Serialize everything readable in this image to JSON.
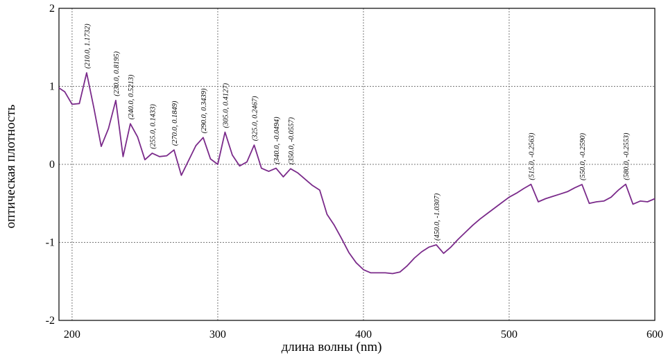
{
  "chart_data": {
    "type": "line",
    "title": "",
    "xlabel": "длина волны (nm)",
    "ylabel": "оптическая плотность",
    "xlim": [
      191,
      600
    ],
    "ylim": [
      -2,
      2
    ],
    "x_ticks": [
      200,
      300,
      400,
      500,
      600
    ],
    "y_ticks": [
      2,
      1,
      0,
      -1,
      -2
    ],
    "x_tick_labels": [
      "200",
      "300",
      "400",
      "500",
      "600"
    ],
    "y_tick_labels": [
      "2",
      "1",
      "0",
      "-1",
      "-2"
    ],
    "grid": "dashed",
    "series_color": "#7a2a8a",
    "series": [
      {
        "x": [
          191,
          195,
          200,
          205,
          210,
          215,
          220,
          225,
          230,
          235,
          240,
          245,
          250,
          255,
          260,
          265,
          270,
          275,
          280,
          285,
          290,
          295,
          300,
          305,
          310,
          315,
          320,
          325,
          330,
          335,
          340,
          345,
          350,
          355,
          360,
          365,
          370,
          375,
          380,
          385,
          390,
          395,
          400,
          405,
          410,
          415,
          420,
          425,
          430,
          435,
          440,
          445,
          450,
          455,
          460,
          465,
          470,
          475,
          480,
          485,
          490,
          495,
          500,
          505,
          510,
          515,
          520,
          525,
          530,
          535,
          540,
          545,
          550,
          555,
          560,
          565,
          570,
          575,
          580,
          585,
          590,
          595,
          600
        ],
        "y": [
          0.98,
          0.93,
          0.77,
          0.78,
          1.1732,
          0.72,
          0.23,
          0.46,
          0.8195,
          0.1,
          0.5213,
          0.35,
          0.06,
          0.1433,
          0.1,
          0.11,
          0.1849,
          -0.14,
          0.05,
          0.24,
          0.3439,
          0.07,
          0.0,
          0.4127,
          0.12,
          -0.02,
          0.03,
          0.2467,
          -0.05,
          -0.09,
          -0.0494,
          -0.16,
          -0.0557,
          -0.11,
          -0.19,
          -0.27,
          -0.33,
          -0.64,
          -0.78,
          -0.95,
          -1.13,
          -1.26,
          -1.35,
          -1.39,
          -1.39,
          -1.39,
          -1.4,
          -1.38,
          -1.3,
          -1.2,
          -1.12,
          -1.06,
          -1.0307,
          -1.14,
          -1.06,
          -0.96,
          -0.87,
          -0.78,
          -0.7,
          -0.63,
          -0.56,
          -0.49,
          -0.42,
          -0.37,
          -0.31,
          -0.2563,
          -0.48,
          -0.44,
          -0.41,
          -0.38,
          -0.35,
          -0.3,
          -0.259,
          -0.5,
          -0.48,
          -0.47,
          -0.42,
          -0.33,
          -0.2553,
          -0.51,
          -0.47,
          -0.48,
          -0.44
        ]
      }
    ],
    "annotations": [
      {
        "x": 210,
        "y": 1.1732,
        "text": "(210.0, 1.1732)"
      },
      {
        "x": 230,
        "y": 0.8195,
        "text": "(230.0, 0.8195)"
      },
      {
        "x": 240,
        "y": 0.5213,
        "text": "(240.0, 0.5213)"
      },
      {
        "x": 255,
        "y": 0.1433,
        "text": "(255.0, 0.1433)"
      },
      {
        "x": 270,
        "y": 0.1849,
        "text": "(270.0, 0.1849)"
      },
      {
        "x": 290,
        "y": 0.3439,
        "text": "(290.0, 0.3439)"
      },
      {
        "x": 305,
        "y": 0.4127,
        "text": "(305.0, 0.4127)"
      },
      {
        "x": 325,
        "y": 0.2467,
        "text": "(325.0, 0.2467)"
      },
      {
        "x": 340,
        "y": -0.0494,
        "text": "(340.0, -0.0494)"
      },
      {
        "x": 350,
        "y": -0.0557,
        "text": "(350.0, -0.0557)"
      },
      {
        "x": 450,
        "y": -1.0307,
        "text": "(450.0, -1.0307)"
      },
      {
        "x": 515,
        "y": -0.2563,
        "text": "(515.0, -0.2563)"
      },
      {
        "x": 550,
        "y": -0.259,
        "text": "(550.0, -0.2590)"
      },
      {
        "x": 580,
        "y": -0.2553,
        "text": "(580.0, -0.2553)"
      }
    ]
  }
}
